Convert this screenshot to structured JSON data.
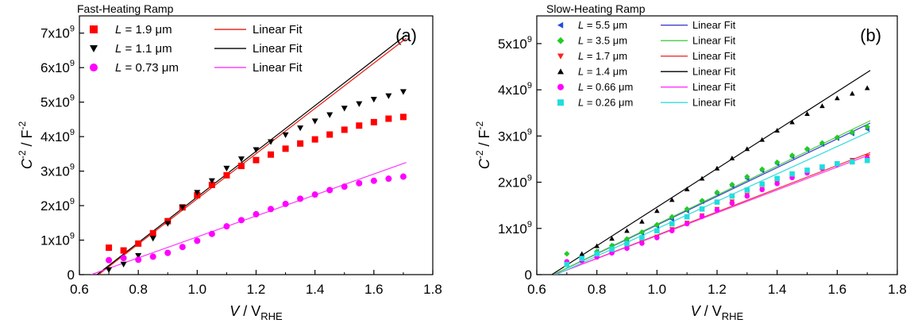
{
  "chart_data": [
    {
      "type": "scatter",
      "title": "Fast-Heating Ramp",
      "panel_label": "(a)",
      "xlabel": {
        "main": "V",
        "sep": " / V",
        "sub": "RHE"
      },
      "ylabel": {
        "main": "C",
        "sup": "-2",
        "sep": " / F",
        "sup2": "-2"
      },
      "xlim": [
        0.6,
        1.8
      ],
      "ylim": [
        0,
        7500000000.0
      ],
      "xticks": [
        0.6,
        0.8,
        1.0,
        1.2,
        1.4,
        1.6,
        1.8
      ],
      "xtick_labels": [
        "0.6",
        "0.8",
        "1.0",
        "1.2",
        "1.4",
        "1.6",
        "1.8"
      ],
      "yticks": [
        0,
        1000000000.0,
        2000000000.0,
        3000000000.0,
        4000000000.0,
        5000000000.0,
        6000000000.0,
        7000000000.0
      ],
      "ytick_labels": [
        {
          "m": "0",
          "e": ""
        },
        {
          "m": "1x10",
          "e": "9"
        },
        {
          "m": "2x10",
          "e": "9"
        },
        {
          "m": "3x10",
          "e": "9"
        },
        {
          "m": "4x10",
          "e": "9"
        },
        {
          "m": "5x10",
          "e": "9"
        },
        {
          "m": "6x10",
          "e": "9"
        },
        {
          "m": "7x10",
          "e": "9"
        }
      ],
      "grid": false,
      "legend_position": "top",
      "legend_fit_label": "Linear Fit",
      "series": [
        {
          "name": "L = 1.9 μm",
          "name_l": "L",
          "name_rest": " = 1.9 μm",
          "marker": "square",
          "color": "#ff0000",
          "x": [
            0.7,
            0.75,
            0.8,
            0.85,
            0.9,
            0.95,
            1.0,
            1.05,
            1.1,
            1.15,
            1.2,
            1.25,
            1.3,
            1.35,
            1.4,
            1.45,
            1.5,
            1.55,
            1.6,
            1.65,
            1.7
          ],
          "y": [
            780000000.0,
            700000000.0,
            900000000.0,
            1200000000.0,
            1550000000.0,
            1950000000.0,
            2300000000.0,
            2600000000.0,
            2880000000.0,
            3150000000.0,
            3320000000.0,
            3480000000.0,
            3650000000.0,
            3800000000.0,
            3920000000.0,
            4060000000.0,
            4200000000.0,
            4320000000.0,
            4420000000.0,
            4520000000.0,
            4570000000.0
          ],
          "fit": {
            "x": [
              0.665,
              1.71
            ],
            "y": [
              0,
              6850000000.0
            ],
            "color": "#e8190c"
          }
        },
        {
          "name": "L = 1.1 μm",
          "name_l": "L",
          "name_rest": " = 1.1 μm",
          "marker": "triangle-down",
          "color": "#000000",
          "x": [
            0.7,
            0.75,
            0.8,
            0.85,
            0.9,
            0.95,
            1.0,
            1.05,
            1.1,
            1.15,
            1.2,
            1.25,
            1.3,
            1.35,
            1.4,
            1.45,
            1.5,
            1.55,
            1.6,
            1.65,
            1.7
          ],
          "y": [
            140000000.0,
            300000000.0,
            550000000.0,
            1050000000.0,
            1480000000.0,
            1950000000.0,
            2380000000.0,
            2720000000.0,
            3080000000.0,
            3350000000.0,
            3620000000.0,
            3850000000.0,
            4050000000.0,
            4250000000.0,
            4450000000.0,
            4630000000.0,
            4820000000.0,
            4950000000.0,
            5080000000.0,
            5180000000.0,
            5300000000.0
          ],
          "fit": {
            "x": [
              0.66,
              1.71
            ],
            "y": [
              0,
              6950000000.0
            ],
            "color": "#000000"
          }
        },
        {
          "name": "L = 0.73 μm",
          "name_l": "L",
          "name_rest": " = 0.73 μm",
          "marker": "circle",
          "color": "#ff00ff",
          "x": [
            0.7,
            0.75,
            0.8,
            0.85,
            0.9,
            0.95,
            1.0,
            1.05,
            1.1,
            1.15,
            1.2,
            1.25,
            1.3,
            1.35,
            1.4,
            1.45,
            1.5,
            1.55,
            1.6,
            1.65,
            1.7
          ],
          "y": [
            420000000.0,
            480000000.0,
            430000000.0,
            520000000.0,
            630000000.0,
            800000000.0,
            980000000.0,
            1180000000.0,
            1400000000.0,
            1580000000.0,
            1750000000.0,
            1900000000.0,
            2050000000.0,
            2200000000.0,
            2320000000.0,
            2450000000.0,
            2550000000.0,
            2650000000.0,
            2720000000.0,
            2780000000.0,
            2840000000.0
          ],
          "fit": {
            "x": [
              0.64,
              1.71
            ],
            "y": [
              0,
              3250000000.0
            ],
            "color": "#ff33ff"
          }
        }
      ]
    },
    {
      "type": "scatter",
      "title": "Slow-Heating Ramp",
      "panel_label": "(b)",
      "xlabel": {
        "main": "V",
        "sep": " / V",
        "sub": "RHE"
      },
      "ylabel": {
        "main": "C",
        "sup": "-2",
        "sep": " / F",
        "sup2": "-2"
      },
      "xlim": [
        0.6,
        1.8
      ],
      "ylim": [
        0,
        5600000000.0
      ],
      "xticks": [
        0.6,
        0.8,
        1.0,
        1.2,
        1.4,
        1.6,
        1.8
      ],
      "xtick_labels": [
        "0.6",
        "0.8",
        "1.0",
        "1.2",
        "1.4",
        "1.6",
        "1.8"
      ],
      "yticks": [
        0,
        1000000000.0,
        2000000000.0,
        3000000000.0,
        4000000000.0,
        5000000000.0
      ],
      "ytick_labels": [
        {
          "m": "0",
          "e": ""
        },
        {
          "m": "1x10",
          "e": "9"
        },
        {
          "m": "2x10",
          "e": "9"
        },
        {
          "m": "3x10",
          "e": "9"
        },
        {
          "m": "4x10",
          "e": "9"
        },
        {
          "m": "5x10",
          "e": "9"
        }
      ],
      "grid": false,
      "legend_position": "top",
      "legend_fit_label": "Linear Fit",
      "series": [
        {
          "name": "L = 5.5 μm",
          "name_l": "L",
          "name_rest": " = 5.5 μm",
          "marker": "triangle-left",
          "color": "#1f4fd9",
          "x": [
            0.75,
            0.8,
            0.85,
            0.9,
            0.95,
            1.0,
            1.05,
            1.1,
            1.15,
            1.2,
            1.25,
            1.3,
            1.35,
            1.4,
            1.45,
            1.5,
            1.55,
            1.6,
            1.65,
            1.7
          ],
          "y": [
            400000000.0,
            500000000.0,
            620000000.0,
            750000000.0,
            900000000.0,
            1050000000.0,
            1200000000.0,
            1380000000.0,
            1580000000.0,
            1750000000.0,
            1920000000.0,
            2080000000.0,
            2250000000.0,
            2400000000.0,
            2550000000.0,
            2700000000.0,
            2820000000.0,
            2950000000.0,
            3050000000.0,
            3150000000.0
          ],
          "fit": {
            "x": [
              0.655,
              1.71
            ],
            "y": [
              0,
              3280000000.0
            ],
            "color": "#4040d0"
          }
        },
        {
          "name": "L = 3.5 μm",
          "name_l": "L",
          "name_rest": " = 3.5 μm",
          "marker": "diamond",
          "color": "#22cc22",
          "x": [
            0.7,
            0.75,
            0.8,
            0.85,
            0.9,
            0.95,
            1.0,
            1.05,
            1.1,
            1.15,
            1.2,
            1.25,
            1.3,
            1.35,
            1.4,
            1.45,
            1.5,
            1.55,
            1.6,
            1.65,
            1.7
          ],
          "y": [
            450000000.0,
            380000000.0,
            500000000.0,
            630000000.0,
            770000000.0,
            920000000.0,
            1080000000.0,
            1250000000.0,
            1420000000.0,
            1600000000.0,
            1780000000.0,
            1950000000.0,
            2120000000.0,
            2280000000.0,
            2430000000.0,
            2580000000.0,
            2720000000.0,
            2850000000.0,
            2970000000.0,
            3080000000.0,
            3200000000.0
          ],
          "fit": {
            "x": [
              0.655,
              1.71
            ],
            "y": [
              0,
              3330000000.0
            ],
            "color": "#44cc44"
          }
        },
        {
          "name": "L = 1.7 μm",
          "name_l": "L",
          "name_rest": " = 1.7 μm",
          "marker": "triangle-down",
          "color": "#ff2020",
          "x": [
            0.75,
            0.8,
            0.85,
            0.9,
            0.95,
            1.0,
            1.05,
            1.1,
            1.15,
            1.2,
            1.25,
            1.3,
            1.35,
            1.4,
            1.45,
            1.5,
            1.55,
            1.6,
            1.65,
            1.7
          ],
          "y": [
            320000000.0,
            400000000.0,
            480000000.0,
            580000000.0,
            700000000.0,
            820000000.0,
            980000000.0,
            1120000000.0,
            1280000000.0,
            1420000000.0,
            1580000000.0,
            1720000000.0,
            1850000000.0,
            1980000000.0,
            2100000000.0,
            2200000000.0,
            2300000000.0,
            2400000000.0,
            2480000000.0,
            2560000000.0
          ],
          "fit": {
            "x": [
              0.66,
              1.71
            ],
            "y": [
              0,
              2640000000.0
            ],
            "color": "#ee3333"
          }
        },
        {
          "name": "L = 1.4 μm",
          "name_l": "L",
          "name_rest": " = 1.4 μm",
          "marker": "triangle-up",
          "color": "#000000",
          "x": [
            0.75,
            0.8,
            0.85,
            0.9,
            0.95,
            1.0,
            1.05,
            1.1,
            1.15,
            1.2,
            1.25,
            1.3,
            1.35,
            1.4,
            1.45,
            1.5,
            1.55,
            1.6,
            1.65,
            1.7
          ],
          "y": [
            450000000.0,
            620000000.0,
            780000000.0,
            950000000.0,
            1150000000.0,
            1380000000.0,
            1620000000.0,
            1850000000.0,
            2080000000.0,
            2300000000.0,
            2520000000.0,
            2720000000.0,
            2920000000.0,
            3120000000.0,
            3300000000.0,
            3480000000.0,
            3650000000.0,
            3820000000.0,
            3920000000.0,
            4040000000.0
          ],
          "fit": {
            "x": [
              0.65,
              1.71
            ],
            "y": [
              0,
              4420000000.0
            ],
            "color": "#000000"
          }
        },
        {
          "name": "L = 0.66 μm",
          "name_l": "L",
          "name_rest": " = 0.66 μm",
          "marker": "circle",
          "color": "#ff00ff",
          "x": [
            0.7,
            0.75,
            0.8,
            0.85,
            0.9,
            0.95,
            1.0,
            1.05,
            1.1,
            1.15,
            1.2,
            1.25,
            1.3,
            1.35,
            1.4,
            1.45,
            1.5,
            1.55,
            1.6,
            1.65,
            1.7
          ],
          "y": [
            280000000.0,
            300000000.0,
            380000000.0,
            470000000.0,
            570000000.0,
            680000000.0,
            800000000.0,
            950000000.0,
            1100000000.0,
            1260000000.0,
            1400000000.0,
            1550000000.0,
            1700000000.0,
            1840000000.0,
            1970000000.0,
            2100000000.0,
            2200000000.0,
            2300000000.0,
            2380000000.0,
            2450000000.0,
            2520000000.0
          ],
          "fit": {
            "x": [
              0.66,
              1.71
            ],
            "y": [
              0,
              2600000000.0
            ],
            "color": "#ff33ff"
          }
        },
        {
          "name": "L = 0.26 μm",
          "name_l": "L",
          "name_rest": " = 0.26 μm",
          "marker": "square",
          "color": "#22dddd",
          "x": [
            0.7,
            0.75,
            0.8,
            0.85,
            0.9,
            0.95,
            1.0,
            1.05,
            1.1,
            1.15,
            1.2,
            1.25,
            1.3,
            1.35,
            1.4,
            1.45,
            1.5,
            1.55,
            1.6,
            1.65,
            1.7
          ],
          "y": [
            220000000.0,
            350000000.0,
            450000000.0,
            550000000.0,
            670000000.0,
            800000000.0,
            950000000.0,
            1100000000.0,
            1250000000.0,
            1420000000.0,
            1570000000.0,
            1700000000.0,
            1830000000.0,
            1960000000.0,
            2080000000.0,
            2180000000.0,
            2260000000.0,
            2330000000.0,
            2400000000.0,
            2440000000.0,
            2470000000.0
          ],
          "fit": {
            "x": [
              0.665,
              1.71
            ],
            "y": [
              0,
              3100000000.0
            ],
            "color": "#33dddd"
          }
        }
      ]
    }
  ]
}
